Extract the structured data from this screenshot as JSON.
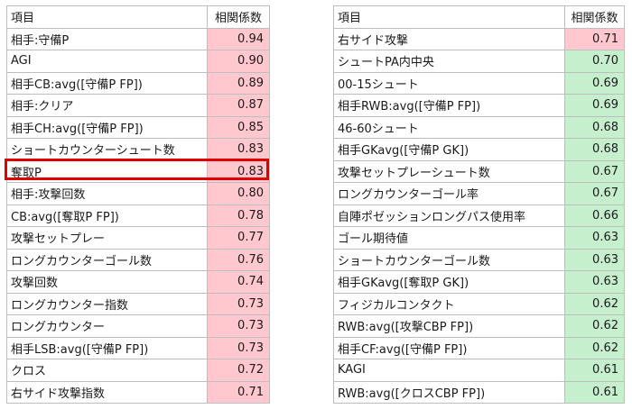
{
  "colors": {
    "pink": "#ffc7ce",
    "green": "#c6efce",
    "highlight": "#e00000"
  },
  "left_table": {
    "headers": {
      "item": "項目",
      "value": "相関係数"
    },
    "rows": [
      {
        "item": "相手:守備P",
        "value": "0.94",
        "color": "pink"
      },
      {
        "item": "AGI",
        "value": "0.90",
        "color": "pink"
      },
      {
        "item": "相手CB:avg([守備P FP])",
        "value": "0.89",
        "color": "pink"
      },
      {
        "item": "相手:クリア",
        "value": "0.87",
        "color": "pink"
      },
      {
        "item": "相手CH:avg([守備P FP])",
        "value": "0.85",
        "color": "pink"
      },
      {
        "item": "ショートカウンターシュート数",
        "value": "0.83",
        "color": "pink"
      },
      {
        "item": "奪取P",
        "value": "0.83",
        "color": "pink",
        "highlighted": true
      },
      {
        "item": "相手:攻撃回数",
        "value": "0.80",
        "color": "pink"
      },
      {
        "item": "CB:avg([奪取P FP])",
        "value": "0.78",
        "color": "pink"
      },
      {
        "item": "攻撃セットプレー",
        "value": "0.77",
        "color": "pink"
      },
      {
        "item": "ロングカウンターゴール数",
        "value": "0.76",
        "color": "pink"
      },
      {
        "item": "攻撃回数",
        "value": "0.74",
        "color": "pink"
      },
      {
        "item": "ロングカウンター指数",
        "value": "0.73",
        "color": "pink"
      },
      {
        "item": "ロングカウンター",
        "value": "0.73",
        "color": "pink"
      },
      {
        "item": "相手LSB:avg([守備P FP])",
        "value": "0.73",
        "color": "pink"
      },
      {
        "item": "クロス",
        "value": "0.72",
        "color": "pink"
      },
      {
        "item": "右サイド攻撃指数",
        "value": "0.71",
        "color": "pink"
      }
    ]
  },
  "right_table": {
    "headers": {
      "item": "項目",
      "value": "相関係数"
    },
    "rows": [
      {
        "item": "右サイド攻撃",
        "value": "0.71",
        "color": "pink"
      },
      {
        "item": "シュートPA内中央",
        "value": "0.70",
        "color": "green"
      },
      {
        "item": "00-15シュート",
        "value": "0.69",
        "color": "green"
      },
      {
        "item": "相手RWB:avg([守備P FP])",
        "value": "0.69",
        "color": "green"
      },
      {
        "item": "46-60シュート",
        "value": "0.68",
        "color": "green"
      },
      {
        "item": "相手GKavg([守備P GK])",
        "value": "0.68",
        "color": "green"
      },
      {
        "item": "攻撃セットプレーシュート数",
        "value": "0.67",
        "color": "green"
      },
      {
        "item": "ロングカウンターゴール率",
        "value": "0.67",
        "color": "green"
      },
      {
        "item": "自陣ポゼッションロングパス使用率",
        "value": "0.66",
        "color": "green"
      },
      {
        "item": "ゴール期待値",
        "value": "0.63",
        "color": "green"
      },
      {
        "item": "ショートカウンターゴール数",
        "value": "0.63",
        "color": "green"
      },
      {
        "item": "相手GKavg([奪取P GK])",
        "value": "0.63",
        "color": "green"
      },
      {
        "item": "フィジカルコンタクト",
        "value": "0.62",
        "color": "green"
      },
      {
        "item": "RWB:avg([攻撃CBP FP])",
        "value": "0.62",
        "color": "green"
      },
      {
        "item": "相手CF:avg([守備P FP])",
        "value": "0.62",
        "color": "green"
      },
      {
        "item": "KAGI",
        "value": "0.61",
        "color": "green"
      },
      {
        "item": "RWB:avg([クロスCBP FP])",
        "value": "0.61",
        "color": "green"
      }
    ]
  }
}
